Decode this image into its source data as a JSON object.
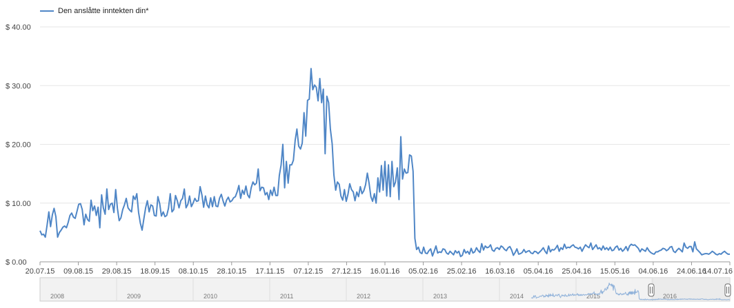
{
  "legend": {
    "label": "Den anslåtte inntekten din*",
    "color": "#4f86c6"
  },
  "navigator": {
    "years": [
      "2008",
      "2009",
      "2010",
      "2011",
      "2012",
      "2013",
      "2014",
      "2015",
      "2016"
    ]
  },
  "chart_data": {
    "type": "line",
    "title": "",
    "xlabel": "",
    "ylabel": "",
    "ylim": [
      0,
      40
    ],
    "yticks": [
      0,
      10,
      20,
      30,
      40
    ],
    "ytick_labels": [
      "$ 0.00",
      "$ 10.00",
      "$ 20.00",
      "$ 30.00",
      "$ 40.00"
    ],
    "xticks": [
      "20.07.15",
      "09.08.15",
      "29.08.15",
      "18.09.15",
      "08.10.15",
      "28.10.15",
      "17.11.15",
      "07.12.15",
      "27.12.15",
      "16.01.16",
      "05.02.16",
      "25.02.16",
      "16.03.16",
      "05.04.16",
      "25.04.16",
      "15.05.16",
      "04.06.16",
      "24.06.16",
      "14.07.16"
    ],
    "grid": true,
    "legend_position": "top-left",
    "series": [
      {
        "name": "Den anslåtte inntekten din*",
        "color": "#4f86c6",
        "x_start": "20.07.15",
        "x_end": "14.07.16",
        "values": [
          5.3,
          4.6,
          4.7,
          4.2,
          6.2,
          8.5,
          6.0,
          8.0,
          9.1,
          7.7,
          4.2,
          5.0,
          5.4,
          5.9,
          6.1,
          5.8,
          6.7,
          7.9,
          8.3,
          7.6,
          7.4,
          8.6,
          9.8,
          9.9,
          8.9,
          6.3,
          8.1,
          7.2,
          6.9,
          10.5,
          8.7,
          9.5,
          7.9,
          9.3,
          5.8,
          11.4,
          9.2,
          8.1,
          12.4,
          8.9,
          9.8,
          10.0,
          8.4,
          12.3,
          9.1,
          7.0,
          7.5,
          8.9,
          9.7,
          10.8,
          9.2,
          8.8,
          8.5,
          11.2,
          10.6,
          11.6,
          8.4,
          6.6,
          5.4,
          7.3,
          9.2,
          10.4,
          8.5,
          9.7,
          9.5,
          7.9,
          7.8,
          11.1,
          9.9,
          7.8,
          8.5,
          7.7,
          7.9,
          9.1,
          11.6,
          8.5,
          8.9,
          11.3,
          10.4,
          9.2,
          10.4,
          10.8,
          12.4,
          9.2,
          9.8,
          11.2,
          9.4,
          10.0,
          10.8,
          10.3,
          10.4,
          12.8,
          11.4,
          9.3,
          11.2,
          9.7,
          9.2,
          10.9,
          9.4,
          11.1,
          9.5,
          9.4,
          10.8,
          11.5,
          10.4,
          9.5,
          10.5,
          11.0,
          10.2,
          10.4,
          10.9,
          11.1,
          11.9,
          13.0,
          10.8,
          12.2,
          11.5,
          12.9,
          11.4,
          10.9,
          12.6,
          13.6,
          13.1,
          13.4,
          15.8,
          12.1,
          12.7,
          12.6,
          11.4,
          11.8,
          10.6,
          12.2,
          11.3,
          12.7,
          11.3,
          11.3,
          14.7,
          16.5,
          20.0,
          12.6,
          17.1,
          13.4,
          16.5,
          16.5,
          17.3,
          20.7,
          22.6,
          19.7,
          19.2,
          20.2,
          25.4,
          21.4,
          27.5,
          27.7,
          32.9,
          29.3,
          30.1,
          29.7,
          27.4,
          31.2,
          27.1,
          29.4,
          18.4,
          28.2,
          27.1,
          22.6,
          20.1,
          14.8,
          12.2,
          13.6,
          13.2,
          11.2,
          10.5,
          12.3,
          10.3,
          11.5,
          13.3,
          12.3,
          11.9,
          10.4,
          11.9,
          11.1,
          12.8,
          11.6,
          12.1,
          13.1,
          15.1,
          13.4,
          11.1,
          10.3,
          11.6,
          10.0,
          14.3,
          11.9,
          16.4,
          12.2,
          17.1,
          11.2,
          16.5,
          11.1,
          17.1,
          12.8,
          13.6,
          16.0,
          10.6,
          21.3,
          14.1,
          15.8,
          15.1,
          15.2,
          18.2,
          18.0,
          15.4,
          4.0,
          2.1,
          2.5,
          1.6,
          1.4,
          2.5,
          1.5,
          1.4,
          1.9,
          2.2,
          1.0,
          1.8,
          2.7,
          1.5,
          1.7,
          1.6,
          2.2,
          2.1,
          1.5,
          1.3,
          1.8,
          1.5,
          1.2,
          1.9,
          1.5,
          1.8,
          0.9,
          1.1,
          2.1,
          1.5,
          1.8,
          1.3,
          2.3,
          1.5,
          1.7,
          2.4,
          1.9,
          1.6,
          3.1,
          2.0,
          2.7,
          2.4,
          2.5,
          2.9,
          2.0,
          1.8,
          2.3,
          2.4,
          2.1,
          2.7,
          2.5,
          2.1,
          1.9,
          2.4,
          2.6,
          2.0,
          1.1,
          1.6,
          2.2,
          1.3,
          1.4,
          1.6,
          2.1,
          1.6,
          1.8,
          1.9,
          1.5,
          1.4,
          1.8,
          1.7,
          1.4,
          1.7,
          2.0,
          2.4,
          1.8,
          1.4,
          2.7,
          1.7,
          2.1,
          2.0,
          2.3,
          2.8,
          1.8,
          2.4,
          2.1,
          3.0,
          2.3,
          2.5,
          2.4,
          2.7,
          2.9,
          2.5,
          2.4,
          2.2,
          2.5,
          1.8,
          2.4,
          2.9,
          2.6,
          2.4,
          3.2,
          2.1,
          2.5,
          2.9,
          2.2,
          2.4,
          2.0,
          2.7,
          2.1,
          2.4,
          2.0,
          2.5,
          1.9,
          2.0,
          2.5,
          2.7,
          2.0,
          2.3,
          1.8,
          2.1,
          2.6,
          1.9,
          2.7,
          3.0,
          2.8,
          2.9,
          2.6,
          2.3,
          1.7,
          2.2,
          2.0,
          1.8,
          2.4,
          1.9,
          1.6,
          1.4,
          1.3,
          1.7,
          1.7,
          1.9,
          2.0,
          2.3,
          2.2,
          1.9,
          2.1,
          2.5,
          2.6,
          1.8,
          1.6,
          2.0,
          2.3,
          2.0,
          1.7,
          3.2,
          2.5,
          2.3,
          2.6,
          2.6,
          1.7,
          3.4,
          2.2,
          1.9,
          1.6,
          1.2,
          1.3,
          1.4,
          1.4,
          1.3,
          1.5,
          1.8,
          1.6,
          1.3,
          1.2,
          1.4,
          1.3,
          1.6,
          1.8,
          1.5,
          1.3,
          1.3
        ]
      }
    ]
  }
}
